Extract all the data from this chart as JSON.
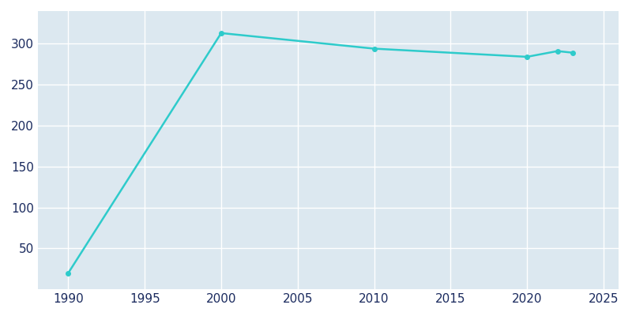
{
  "years": [
    1990,
    2000,
    2010,
    2020,
    2022,
    2023
  ],
  "population": [
    20,
    313,
    294,
    284,
    291,
    289
  ],
  "line_color": "#2ecbcb",
  "marker_color": "#2ecbcb",
  "background_color": "#ffffff",
  "plot_bg_color": "#dce8f0",
  "grid_color": "#ffffff",
  "tick_label_color": "#1a2a5e",
  "xlim": [
    1988,
    2026
  ],
  "ylim": [
    0,
    340
  ],
  "xticks": [
    1990,
    1995,
    2000,
    2005,
    2010,
    2015,
    2020,
    2025
  ],
  "yticks": [
    50,
    100,
    150,
    200,
    250,
    300
  ],
  "line_width": 1.8,
  "marker_size": 4
}
